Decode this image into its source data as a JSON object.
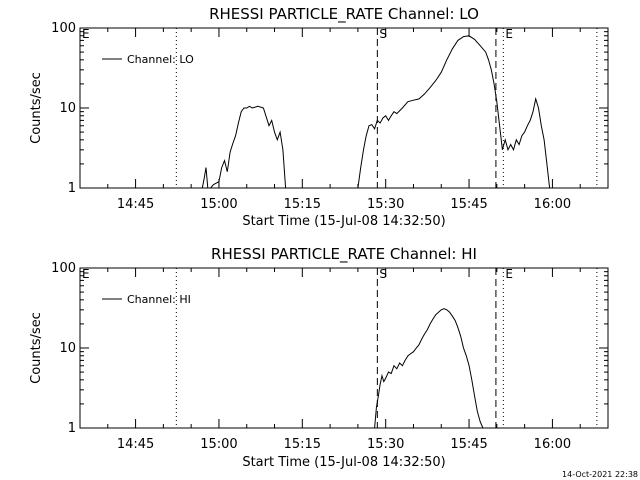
{
  "footer": {
    "timestamp": "14-Oct-2021 22:38"
  },
  "chart_data": [
    {
      "type": "line",
      "title": "RHESSI PARTICLE_RATE Channel: LO",
      "xlabel": "Start Time (15-Jul-08 14:32:50)",
      "ylabel": "Counts/sec",
      "y_scale": "log",
      "ylim": [
        1,
        100
      ],
      "xlim": [
        "14:35",
        "16:10"
      ],
      "x_ticks": [
        "14:45",
        "15:00",
        "15:15",
        "15:30",
        "15:45",
        "16:00"
      ],
      "y_ticks": [
        "1",
        "10",
        "100"
      ],
      "legend": "top-left",
      "series": [
        {
          "name": "Channel: LO",
          "x": [
            "14:57:00",
            "14:57:20",
            "14:57:40",
            "14:58:00",
            "14:58:30",
            "14:59:00",
            "15:00:00",
            "15:00:30",
            "15:01:00",
            "15:01:30",
            "15:02:00",
            "15:02:30",
            "15:03:00",
            "15:03:30",
            "15:04:00",
            "15:04:30",
            "15:05:00",
            "15:05:30",
            "15:06:00",
            "15:07:00",
            "15:08:00",
            "15:09:00",
            "15:09:30",
            "15:10:00",
            "15:10:30",
            "15:11:00",
            "15:11:30",
            "15:12:00",
            "15:25:00",
            "15:25:30",
            "15:26:00",
            "15:26:30",
            "15:27:00",
            "15:27:30",
            "15:28:00",
            "15:28:30",
            "15:29:00",
            "15:29:30",
            "15:30:00",
            "15:30:30",
            "15:31:00",
            "15:31:30",
            "15:32:00",
            "15:33:00",
            "15:34:00",
            "15:35:00",
            "15:36:00",
            "15:37:00",
            "15:38:00",
            "15:39:00",
            "15:40:00",
            "15:41:00",
            "15:42:00",
            "15:43:00",
            "15:44:00",
            "15:45:00",
            "15:46:00",
            "15:47:00",
            "15:48:00",
            "15:48:30",
            "15:49:00",
            "15:49:30",
            "15:50:00",
            "15:50:30",
            "15:51:00",
            "15:51:30",
            "15:52:00",
            "15:52:30",
            "15:53:00",
            "15:53:30",
            "15:54:00",
            "15:54:30",
            "15:55:00",
            "15:55:30",
            "15:56:00",
            "15:56:30",
            "15:57:00",
            "15:57:30",
            "15:58:00",
            "15:58:30",
            "15:59:00",
            "15:59:30"
          ],
          "values": [
            1,
            1.3,
            1.8,
            1,
            1,
            1.1,
            1.2,
            1.8,
            2.2,
            1.6,
            2.8,
            3.6,
            4.5,
            6.5,
            9,
            10,
            10,
            10.5,
            10,
            10.5,
            10,
            6,
            7,
            5,
            4,
            5,
            3,
            1,
            1,
            1.8,
            3,
            4.5,
            6,
            6.2,
            5.5,
            7,
            6.5,
            7.5,
            8,
            7,
            8,
            9,
            8.5,
            10,
            12,
            12.5,
            13,
            15,
            18,
            22,
            28,
            40,
            55,
            70,
            78,
            80,
            72,
            60,
            50,
            40,
            30,
            20,
            12,
            6,
            3,
            4,
            3,
            3.5,
            3,
            4,
            3.5,
            4.5,
            5,
            6,
            7,
            9,
            13,
            10,
            6,
            4,
            2,
            1
          ]
        }
      ],
      "annotations": [
        {
          "label": "E",
          "x": "14:35",
          "style": "dotted"
        },
        {
          "label": "",
          "x": "14:52:20",
          "style": "dotted"
        },
        {
          "label": "S",
          "x": "15:28:30",
          "style": "dashed"
        },
        {
          "label": "",
          "x": "15:49:50",
          "style": "dashed"
        },
        {
          "label": "E",
          "x": "15:51:10",
          "style": "dotted"
        },
        {
          "label": "",
          "x": "16:08:00",
          "style": "dotted"
        }
      ]
    },
    {
      "type": "line",
      "title": "RHESSI PARTICLE_RATE Channel: HI",
      "xlabel": "Start Time (15-Jul-08 14:32:50)",
      "ylabel": "Counts/sec",
      "y_scale": "log",
      "ylim": [
        1,
        100
      ],
      "xlim": [
        "14:35",
        "16:10"
      ],
      "x_ticks": [
        "14:45",
        "15:00",
        "15:15",
        "15:30",
        "15:45",
        "16:00"
      ],
      "y_ticks": [
        "1",
        "10",
        "100"
      ],
      "legend": "top-left",
      "series": [
        {
          "name": "Channel: HI",
          "x": [
            "15:28:00",
            "15:28:20",
            "15:28:40",
            "15:29:00",
            "15:29:20",
            "15:29:40",
            "15:30:00",
            "15:30:30",
            "15:31:00",
            "15:31:30",
            "15:32:00",
            "15:32:30",
            "15:33:00",
            "15:33:30",
            "15:34:00",
            "15:34:30",
            "15:35:00",
            "15:35:30",
            "15:36:00",
            "15:36:30",
            "15:37:00",
            "15:37:30",
            "15:38:00",
            "15:38:30",
            "15:39:00",
            "15:39:30",
            "15:40:00",
            "15:40:30",
            "15:41:00",
            "15:41:30",
            "15:42:00",
            "15:42:30",
            "15:43:00",
            "15:43:30",
            "15:44:00",
            "15:44:30",
            "15:45:00",
            "15:45:30",
            "15:46:00",
            "15:46:30",
            "15:47:00",
            "15:47:30"
          ],
          "values": [
            1,
            1.8,
            2.5,
            3.5,
            4.5,
            3.8,
            4.2,
            5,
            4.8,
            6,
            5.5,
            6.5,
            6,
            7,
            8,
            8.5,
            9,
            10,
            11,
            13,
            15,
            17,
            20,
            23,
            26,
            28,
            30,
            31,
            30,
            28,
            25,
            22,
            18,
            14,
            10,
            8,
            6,
            4,
            2.5,
            1.6,
            1.2,
            1
          ]
        }
      ],
      "annotations": [
        {
          "label": "E",
          "x": "14:35",
          "style": "dotted"
        },
        {
          "label": "",
          "x": "14:52:20",
          "style": "dotted"
        },
        {
          "label": "S",
          "x": "15:28:30",
          "style": "dashed"
        },
        {
          "label": "",
          "x": "15:49:50",
          "style": "dashed"
        },
        {
          "label": "E",
          "x": "15:51:10",
          "style": "dotted"
        },
        {
          "label": "",
          "x": "16:08:00",
          "style": "dotted"
        }
      ]
    }
  ]
}
